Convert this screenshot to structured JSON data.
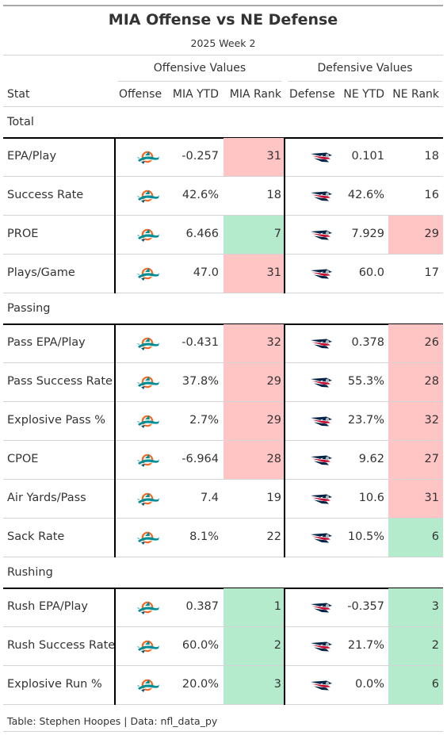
{
  "title": "MIA Offense vs NE Defense",
  "subtitle": "2025 Week 2",
  "spanners": {
    "offensive": "Offensive Values",
    "defensive": "Defensive Values"
  },
  "columns": [
    "Stat",
    "Offense",
    "MIA YTD",
    "MIA Rank",
    "Defense",
    "NE YTD",
    "NE Rank"
  ],
  "icons": {
    "offense_logo": "dolphins-logo-icon",
    "defense_logo": "patriots-logo-icon"
  },
  "colors": {
    "bad": "#ffc4c4",
    "good": "#b3ebcc",
    "rule": "#000000",
    "grid": "#d3d3d3"
  },
  "source": "Table: Stephen Hoopes | Data: nfl_data_py",
  "chart_data": {
    "type": "table",
    "title": "MIA Offense vs NE Defense",
    "subtitle": "2025 Week 2",
    "groups": [
      {
        "name": "Total",
        "rows": [
          {
            "stat": "EPA/Play",
            "mia_ytd": "-0.257",
            "mia_rank": "31",
            "ne_ytd": "0.101",
            "ne_rank": "18",
            "mia_color": "bad",
            "ne_color": "none"
          },
          {
            "stat": "Success Rate",
            "mia_ytd": "42.6%",
            "mia_rank": "18",
            "ne_ytd": "42.6%",
            "ne_rank": "16",
            "mia_color": "none",
            "ne_color": "none"
          },
          {
            "stat": "PROE",
            "mia_ytd": "6.466",
            "mia_rank": "7",
            "ne_ytd": "7.929",
            "ne_rank": "29",
            "mia_color": "good",
            "ne_color": "bad"
          },
          {
            "stat": "Plays/Game",
            "mia_ytd": "47.0",
            "mia_rank": "31",
            "ne_ytd": "60.0",
            "ne_rank": "17",
            "mia_color": "bad",
            "ne_color": "none"
          }
        ]
      },
      {
        "name": "Passing",
        "rows": [
          {
            "stat": "Pass EPA/Play",
            "mia_ytd": "-0.431",
            "mia_rank": "32",
            "ne_ytd": "0.378",
            "ne_rank": "26",
            "mia_color": "bad",
            "ne_color": "bad"
          },
          {
            "stat": "Pass Success Rate",
            "mia_ytd": "37.8%",
            "mia_rank": "29",
            "ne_ytd": "55.3%",
            "ne_rank": "28",
            "mia_color": "bad",
            "ne_color": "bad"
          },
          {
            "stat": "Explosive Pass %",
            "mia_ytd": "2.7%",
            "mia_rank": "29",
            "ne_ytd": "23.7%",
            "ne_rank": "32",
            "mia_color": "bad",
            "ne_color": "bad"
          },
          {
            "stat": "CPOE",
            "mia_ytd": "-6.964",
            "mia_rank": "28",
            "ne_ytd": "9.62",
            "ne_rank": "27",
            "mia_color": "bad",
            "ne_color": "bad"
          },
          {
            "stat": "Air Yards/Pass",
            "mia_ytd": "7.4",
            "mia_rank": "19",
            "ne_ytd": "10.6",
            "ne_rank": "31",
            "mia_color": "none",
            "ne_color": "bad"
          },
          {
            "stat": "Sack Rate",
            "mia_ytd": "8.1%",
            "mia_rank": "22",
            "ne_ytd": "10.5%",
            "ne_rank": "6",
            "mia_color": "none",
            "ne_color": "good"
          }
        ]
      },
      {
        "name": "Rushing",
        "rows": [
          {
            "stat": "Rush EPA/Play",
            "mia_ytd": "0.387",
            "mia_rank": "1",
            "ne_ytd": "-0.357",
            "ne_rank": "3",
            "mia_color": "good",
            "ne_color": "good"
          },
          {
            "stat": "Rush Success Rate",
            "mia_ytd": "60.0%",
            "mia_rank": "2",
            "ne_ytd": "21.7%",
            "ne_rank": "2",
            "mia_color": "good",
            "ne_color": "good"
          },
          {
            "stat": "Explosive Run %",
            "mia_ytd": "20.0%",
            "mia_rank": "3",
            "ne_ytd": "0.0%",
            "ne_rank": "6",
            "mia_color": "good",
            "ne_color": "good"
          }
        ]
      }
    ]
  }
}
